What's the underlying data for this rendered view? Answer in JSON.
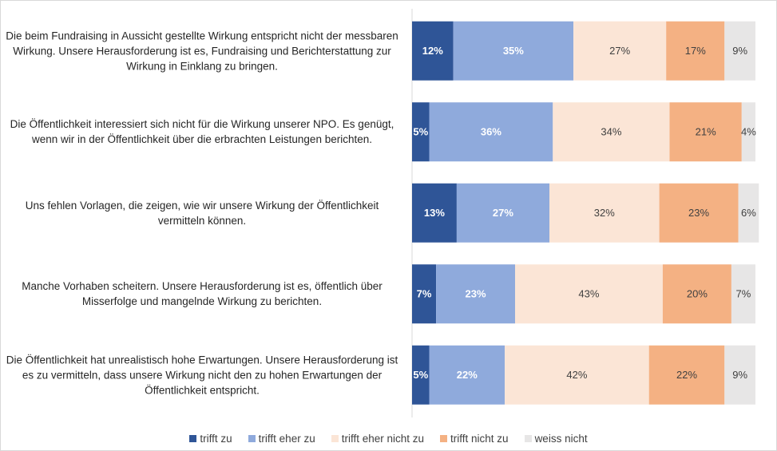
{
  "chart_data": {
    "type": "stacked-bar-horizontal",
    "categories": [
      "Die beim Fundraising in Aussicht gestellte Wirkung entspricht nicht der messbaren Wirkung. Unsere Herausforderung ist es, Fundraising und Berichterstattung zur Wirkung in Einklang zu bringen.",
      "Die Öffentlichkeit interessiert sich nicht für die Wirkung unserer NPO. Es genügt, wenn wir in der Öffentlichkeit über die erbrachten Leistungen berichten.",
      "Uns fehlen Vorlagen, die zeigen, wie wir unsere Wirkung der Öffentlichkeit vermitteln können.",
      "Manche Vorhaben scheitern. Unsere Herausforderung ist es, öffentlich über Misserfolge und mangelnde Wirkung zu berichten.",
      "Die Öffentlichkeit hat unrealistisch hohe Erwartungen. Unsere Herausforderung ist es zu vermitteln, dass unsere Wirkung nicht den zu hohen Erwartungen der Öffentlichkeit entspricht."
    ],
    "series": [
      {
        "name": "trifft zu",
        "color": "#2f5597",
        "values": [
          12,
          5,
          13,
          7,
          5
        ],
        "value_labels": [
          "12%",
          "5%",
          "13%",
          "7%",
          "5%"
        ]
      },
      {
        "name": "trifft eher zu",
        "color": "#8faadc",
        "values": [
          35,
          36,
          27,
          23,
          22
        ],
        "value_labels": [
          "35%",
          "36%",
          "27%",
          "23%",
          "22%"
        ]
      },
      {
        "name": "trifft eher nicht zu",
        "color": "#fbe5d6",
        "values": [
          27,
          34,
          32,
          43,
          42
        ],
        "value_labels": [
          "27%",
          "34%",
          "32%",
          "43%",
          "42%"
        ]
      },
      {
        "name": "trifft nicht zu",
        "color": "#f4b183",
        "values": [
          17,
          21,
          23,
          20,
          22
        ],
        "value_labels": [
          "17%",
          "21%",
          "23%",
          "20%",
          "22%"
        ]
      },
      {
        "name": "weiss nicht",
        "color": "#e7e6e6",
        "values": [
          9,
          4,
          6,
          7,
          9
        ],
        "value_labels": [
          "9%",
          "4%",
          "6%",
          "7%",
          "9%"
        ]
      }
    ],
    "legend": "bottom"
  }
}
